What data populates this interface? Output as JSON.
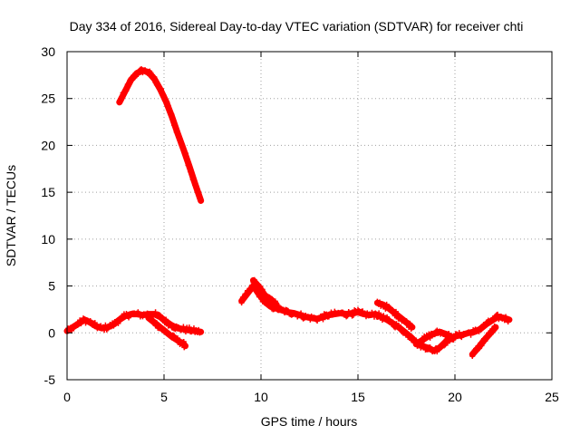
{
  "chart_data": {
    "type": "scatter",
    "title": "Day 334 of 2016, Sidereal Day-to-day VTEC variation (SDTVAR) for receiver chti",
    "xlabel": "GPS time / hours",
    "ylabel": "SDTVAR / TECUs",
    "xlim": [
      0,
      25
    ],
    "ylim": [
      -5,
      30
    ],
    "xticks": [
      0,
      5,
      10,
      15,
      20,
      25
    ],
    "yticks": [
      -5,
      0,
      5,
      10,
      15,
      20,
      25,
      30
    ],
    "grid": true,
    "marker_color": "#ff0000",
    "series": [
      {
        "name": "SDTVAR",
        "segments": [
          {
            "id": "upper-arc",
            "x": [
              2.7,
              3.0,
              3.3,
              3.6,
              3.9,
              4.2,
              4.5,
              4.8,
              5.1,
              5.4,
              5.7,
              6.0,
              6.3,
              6.6,
              6.9
            ],
            "y": [
              24.6,
              25.8,
              27.0,
              27.7,
              28.0,
              27.8,
              27.1,
              26.0,
              24.7,
              23.1,
              21.3,
              19.6,
              17.8,
              15.9,
              14.1
            ]
          },
          {
            "id": "morning-band",
            "x": [
              0.0,
              0.3,
              0.6,
              0.9,
              1.2,
              1.5,
              1.8,
              2.1,
              2.4,
              2.7,
              3.0,
              3.3,
              3.6,
              3.9,
              4.2,
              4.5,
              4.8,
              5.1,
              5.4,
              5.7,
              6.0,
              6.3,
              6.6,
              6.9
            ],
            "y": [
              0.2,
              0.6,
              1.0,
              1.4,
              1.1,
              0.7,
              0.5,
              0.6,
              0.9,
              1.4,
              1.8,
              2.0,
              2.0,
              1.9,
              2.0,
              2.0,
              1.7,
              1.2,
              0.8,
              0.5,
              0.4,
              0.3,
              0.2,
              0.1
            ]
          },
          {
            "id": "morning-lower-branch",
            "x": [
              4.2,
              4.5,
              4.8,
              5.1,
              5.4,
              5.7,
              6.0,
              6.1
            ],
            "y": [
              1.6,
              1.1,
              0.6,
              0.1,
              -0.4,
              -0.8,
              -1.2,
              -1.4
            ]
          },
          {
            "id": "midday-band",
            "x": [
              9.0,
              9.3,
              9.6,
              9.9,
              10.2,
              10.5,
              10.8,
              11.1,
              11.4,
              11.7,
              12.0,
              12.3,
              12.6,
              12.9,
              13.2,
              13.5,
              13.8,
              14.1,
              14.4,
              14.7,
              15.0,
              15.3,
              15.6,
              15.9,
              16.2,
              16.5,
              16.8,
              17.1,
              17.4,
              17.7,
              18.0,
              18.3,
              18.6,
              18.9,
              19.2,
              19.5,
              19.8,
              20.1,
              20.4,
              20.7,
              21.0,
              21.3,
              21.6,
              21.9,
              22.2,
              22.5,
              22.8
            ],
            "y": [
              3.4,
              4.2,
              5.0,
              4.1,
              3.3,
              2.8,
              2.6,
              2.4,
              2.2,
              2.1,
              1.9,
              1.7,
              1.6,
              1.5,
              1.7,
              1.9,
              2.0,
              2.1,
              2.0,
              2.1,
              2.2,
              2.0,
              1.9,
              2.0,
              1.7,
              1.4,
              1.0,
              0.6,
              0.1,
              -0.4,
              -1.0,
              -1.4,
              -1.6,
              -1.9,
              -1.6,
              -1.0,
              -0.6,
              -0.3,
              -0.2,
              0.0,
              0.1,
              0.4,
              0.9,
              1.3,
              1.7,
              1.6,
              1.4
            ]
          },
          {
            "id": "midday-upper-branch",
            "x": [
              9.6,
              9.9,
              10.2,
              10.5,
              10.8
            ],
            "y": [
              5.6,
              4.9,
              4.0,
              3.6,
              3.0
            ]
          },
          {
            "id": "afternoon-branch",
            "x": [
              16.0,
              16.3,
              16.6,
              16.9,
              17.2,
              17.5,
              17.8
            ],
            "y": [
              3.2,
              3.0,
              2.6,
              2.1,
              1.6,
              1.1,
              0.6
            ]
          },
          {
            "id": "evening-branch",
            "x": [
              18.0,
              18.3,
              18.6,
              18.9,
              19.2,
              19.5,
              19.8
            ],
            "y": [
              -1.2,
              -0.8,
              -0.4,
              -0.1,
              0.1,
              -0.1,
              -0.4
            ]
          },
          {
            "id": "late-branch",
            "x": [
              20.9,
              21.2,
              21.5,
              21.8,
              22.1
            ],
            "y": [
              -2.3,
              -1.6,
              -0.8,
              -0.1,
              0.6
            ]
          }
        ]
      }
    ]
  }
}
